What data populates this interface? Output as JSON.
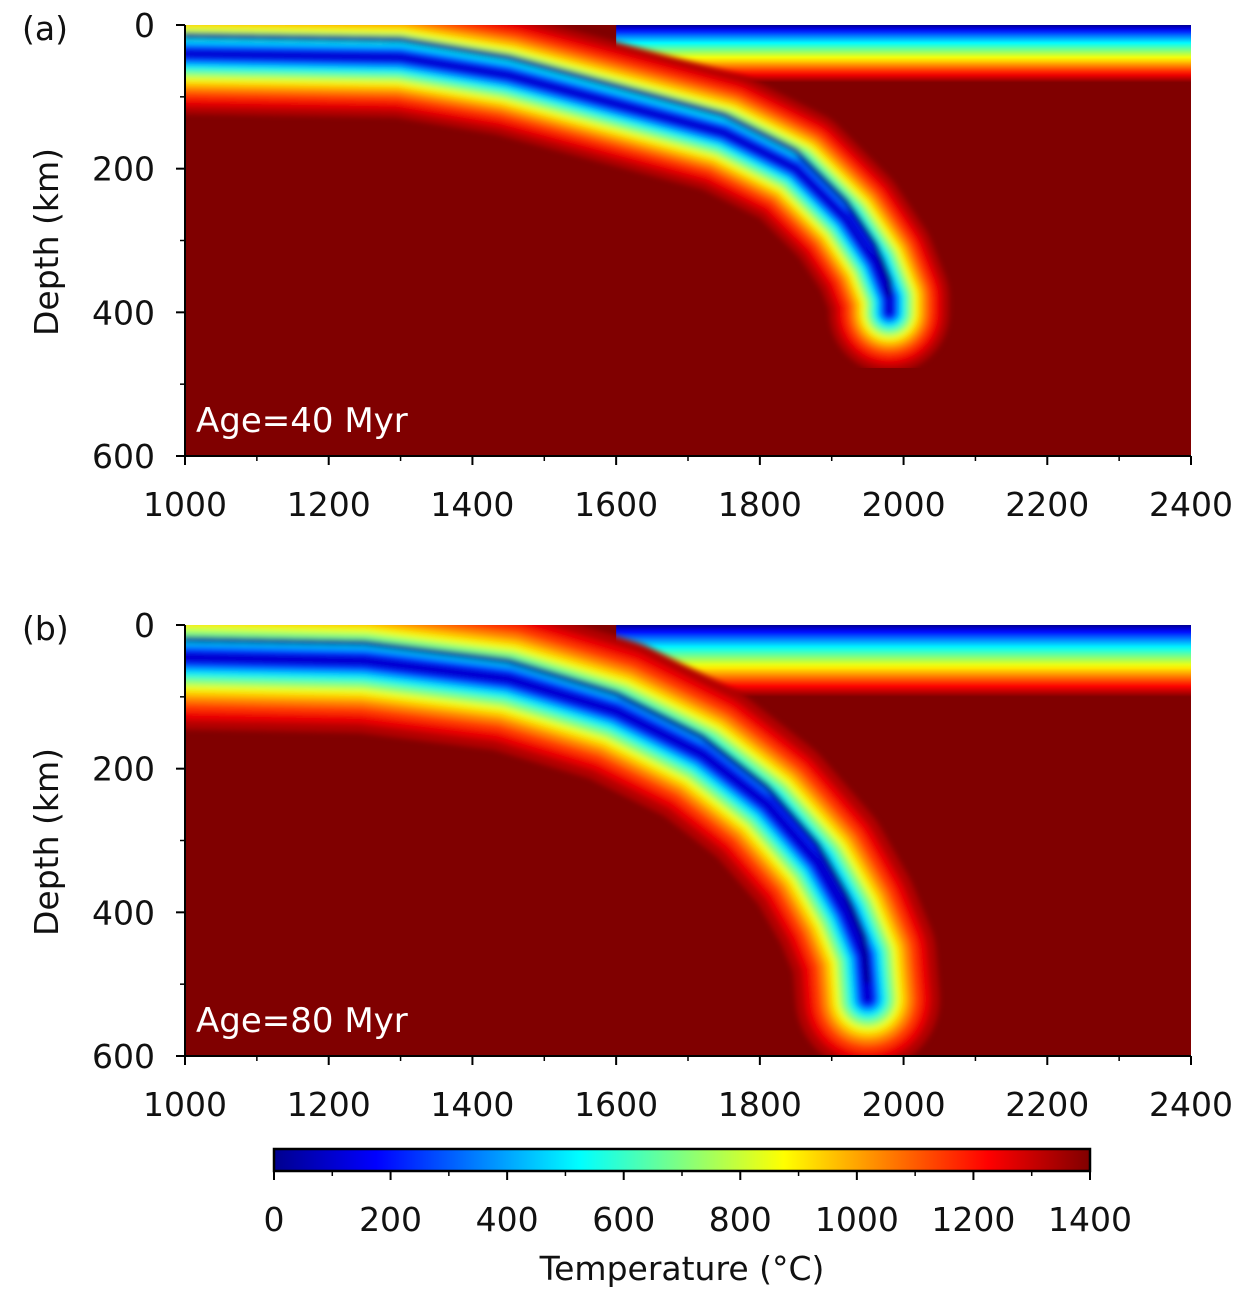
{
  "chart_data": [
    {
      "type": "heatmap",
      "panel_label": "(a)",
      "annotation": "Age=40 Myr",
      "xlabel": "",
      "ylabel": "Depth (km)",
      "xlim": [
        1000,
        2400
      ],
      "ylim": [
        0,
        600
      ],
      "y_reversed": true,
      "xticks": [
        1000,
        1200,
        1400,
        1600,
        1800,
        2000,
        2200,
        2400
      ],
      "yticks": [
        0,
        200,
        400,
        600
      ],
      "xtick_labels": [
        "1000",
        "1200",
        "1400",
        "1600",
        "1800",
        "2000",
        "2200",
        "2400"
      ],
      "ytick_labels": [
        "0",
        "200",
        "400",
        "600"
      ],
      "lithosphere_base_km": 80,
      "slab_centerline": [
        [
          1000,
          40
        ],
        [
          1300,
          45
        ],
        [
          1450,
          70
        ],
        [
          1600,
          110
        ],
        [
          1750,
          150
        ],
        [
          1850,
          200
        ],
        [
          1920,
          270
        ],
        [
          1960,
          330
        ],
        [
          1980,
          380
        ]
      ],
      "slab_tip": [
        1980,
        400
      ],
      "grid": false
    },
    {
      "type": "heatmap",
      "panel_label": "(b)",
      "annotation": "Age=80 Myr",
      "xlabel": "",
      "ylabel": "Depth (km)",
      "xlim": [
        1000,
        2400
      ],
      "ylim": [
        0,
        600
      ],
      "y_reversed": true,
      "xticks": [
        1000,
        1200,
        1400,
        1600,
        1800,
        2000,
        2200,
        2400
      ],
      "yticks": [
        0,
        200,
        400,
        600
      ],
      "xtick_labels": [
        "1000",
        "1200",
        "1400",
        "1600",
        "1800",
        "2000",
        "2200",
        "2400"
      ],
      "ytick_labels": [
        "0",
        "200",
        "400",
        "600"
      ],
      "lithosphere_base_km": 100,
      "slab_centerline": [
        [
          1000,
          45
        ],
        [
          1250,
          50
        ],
        [
          1450,
          75
        ],
        [
          1600,
          120
        ],
        [
          1720,
          180
        ],
        [
          1810,
          250
        ],
        [
          1880,
          330
        ],
        [
          1920,
          400
        ],
        [
          1945,
          460
        ]
      ],
      "slab_tip": [
        1950,
        520
      ],
      "grid": false
    }
  ],
  "colorbar": {
    "label": "Temperature (°C)",
    "range": [
      0,
      1400
    ],
    "ticks": [
      0,
      200,
      400,
      600,
      800,
      1000,
      1200,
      1400
    ],
    "tick_labels": [
      "0",
      "200",
      "400",
      "600",
      "800",
      "1000",
      "1200",
      "1400"
    ],
    "colormap": "jet",
    "colors": [
      "#00008f",
      "#0000ff",
      "#0080ff",
      "#00ffff",
      "#80ff80",
      "#ffff00",
      "#ff8000",
      "#ff0000",
      "#800000"
    ]
  }
}
